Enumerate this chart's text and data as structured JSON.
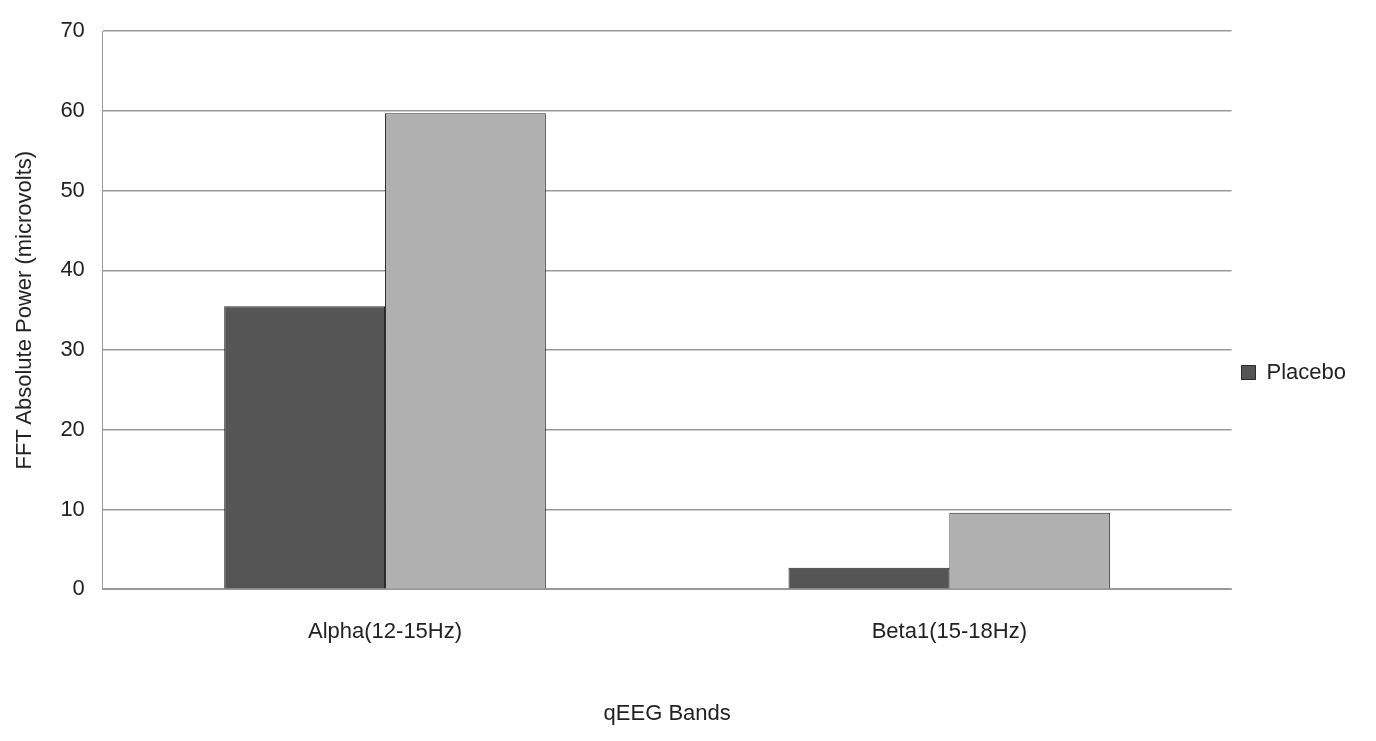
{
  "chart_data": {
    "type": "bar",
    "xlabel": "qEEG Bands",
    "ylabel": "FFT Absolute Power (microvolts)",
    "categories": [
      "Alpha(12-15Hz)",
      "Beta1(15-18Hz)"
    ],
    "series": [
      {
        "name": "Placebo",
        "color": "#555555",
        "values": [
          35.5,
          2.7
        ]
      },
      {
        "color": "#b0b0b0",
        "values": [
          59.7,
          9.6
        ]
      }
    ],
    "ylim": [
      0,
      70
    ],
    "yticks": [
      0,
      10,
      20,
      30,
      40,
      50,
      60,
      70
    ],
    "grid": "y",
    "legend": "right"
  }
}
